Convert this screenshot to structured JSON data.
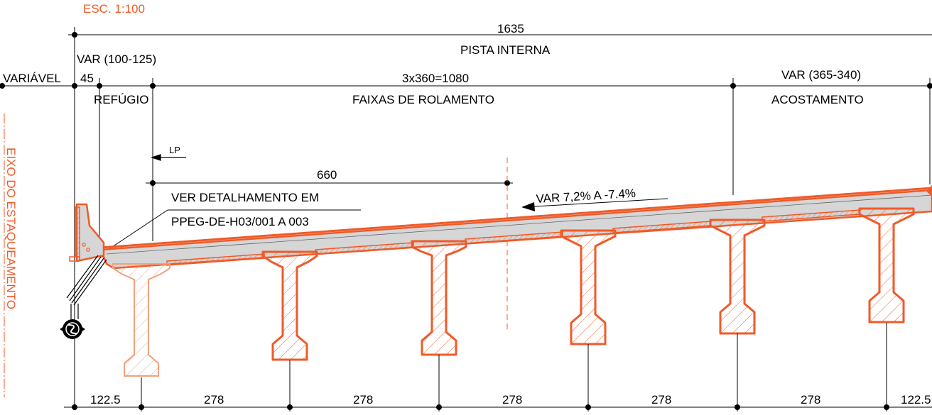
{
  "scale": "ESC. 1:100",
  "axis_label": "EIXO DO ESTAQUEAMENTO",
  "dimensions": {
    "total": {
      "value": "1635",
      "label": "PISTA INTERNA"
    },
    "refuge": {
      "value": "VAR (100-125)",
      "label": "REFÚGIO"
    },
    "left": {
      "value": "VARIÁVEL",
      "sub": "45"
    },
    "lanes": {
      "value": "3x360=1080",
      "label": "FAIXAS DE ROLAMENTO"
    },
    "shoulder": {
      "value": "VAR (365-340)",
      "label": "ACOSTAMENTO"
    },
    "half": {
      "value": "660"
    },
    "bottom": [
      "122.5",
      "278",
      "278",
      "278",
      "278",
      "278",
      "122.5"
    ]
  },
  "centerline_mark": "LP",
  "note": {
    "line1": "VER DETALHAMENTO EM",
    "line2": "PPEG-DE-H03/001 A 003"
  },
  "slope": "VAR 7,2% A -7.4%",
  "colors": {
    "accent": "#f05a28",
    "line": "#000000",
    "deck_fill": "#d6d6d6",
    "light_beam": "#f3a07c"
  }
}
